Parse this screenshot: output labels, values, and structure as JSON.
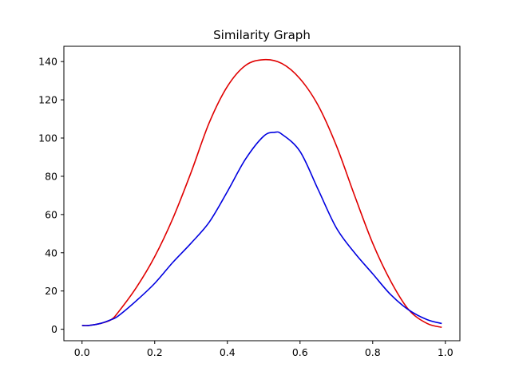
{
  "chart_data": {
    "type": "line",
    "title": "Similarity Graph",
    "xlabel": "",
    "ylabel": "",
    "xlim": [
      -0.05,
      1.04
    ],
    "ylim": [
      -6,
      148
    ],
    "xticks": [
      0.0,
      0.2,
      0.4,
      0.6,
      0.8,
      1.0
    ],
    "xtick_labels": [
      "0.0",
      "0.2",
      "0.4",
      "0.6",
      "0.8",
      "1.0"
    ],
    "yticks": [
      0,
      20,
      40,
      60,
      80,
      100,
      120,
      140
    ],
    "ytick_labels": [
      "0",
      "20",
      "40",
      "60",
      "80",
      "100",
      "120",
      "140"
    ],
    "grid": false,
    "legend": "none",
    "series": [
      {
        "color": "#e00000",
        "x": [
          0.0,
          0.02,
          0.05,
          0.08,
          0.1,
          0.15,
          0.2,
          0.25,
          0.3,
          0.35,
          0.4,
          0.45,
          0.5,
          0.55,
          0.6,
          0.65,
          0.7,
          0.75,
          0.8,
          0.85,
          0.9,
          0.95,
          0.99
        ],
        "y": [
          2,
          2,
          3,
          5,
          9,
          22,
          38,
          58,
          82,
          108,
          127,
          138,
          141,
          139,
          131,
          117,
          96,
          70,
          45,
          25,
          10,
          3,
          1
        ]
      },
      {
        "color": "#0000e0",
        "x": [
          0.0,
          0.02,
          0.05,
          0.08,
          0.1,
          0.15,
          0.2,
          0.25,
          0.3,
          0.35,
          0.4,
          0.45,
          0.5,
          0.53,
          0.55,
          0.6,
          0.65,
          0.7,
          0.75,
          0.8,
          0.85,
          0.9,
          0.95,
          0.99
        ],
        "y": [
          2,
          2,
          3,
          5,
          7,
          15,
          24,
          35,
          45,
          56,
          72,
          89,
          101,
          103,
          102,
          93,
          73,
          53,
          40,
          29,
          18,
          10,
          5,
          3
        ]
      }
    ]
  }
}
